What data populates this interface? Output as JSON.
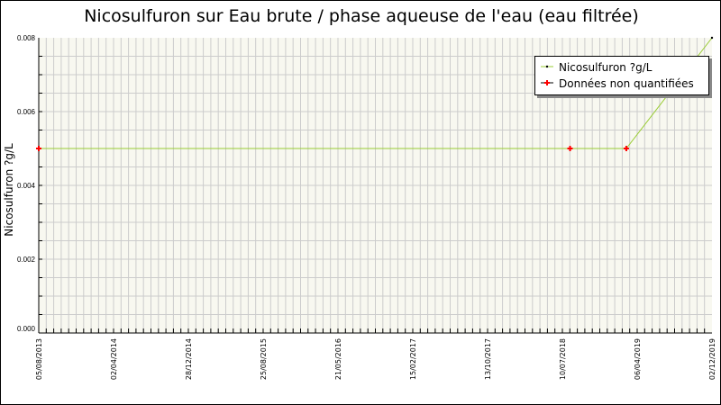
{
  "chart_data": {
    "type": "line",
    "title": "Nicosulfuron sur Eau brute / phase aqueuse de l'eau (eau filtrée)",
    "xlabel": "",
    "ylabel": "Nicosulfuron ?g/L",
    "ylim": [
      0,
      0.008
    ],
    "y_ticks": [
      "0.000",
      "0.002",
      "0.004",
      "0.006",
      "0.008"
    ],
    "x_tick_labels": [
      "05/08/2013",
      "02/04/2014",
      "28/12/2014",
      "25/08/2015",
      "21/05/2016",
      "15/02/2017",
      "13/10/2017",
      "10/07/2018",
      "06/04/2019",
      "02/12/2019"
    ],
    "xlim": [
      "2013-08-05",
      "2019-12-02"
    ],
    "grid": true,
    "legend_position": "top-right",
    "series": [
      {
        "name": "Nicosulfuron ?g/L",
        "color": "#99cc33",
        "points": [
          [
            "2013-08-05",
            0.005
          ],
          [
            "2018-08-02",
            0.005
          ],
          [
            "2019-02-11",
            0.005
          ],
          [
            "2019-12-02",
            0.008
          ]
        ]
      },
      {
        "name": "Données non quantifiées",
        "color": "#ff0000",
        "points": [
          [
            "2013-08-05",
            0.005
          ],
          [
            "2018-08-02",
            0.005
          ],
          [
            "2019-02-11",
            0.005
          ]
        ]
      }
    ],
    "quantified_marker_color": "#000000"
  }
}
